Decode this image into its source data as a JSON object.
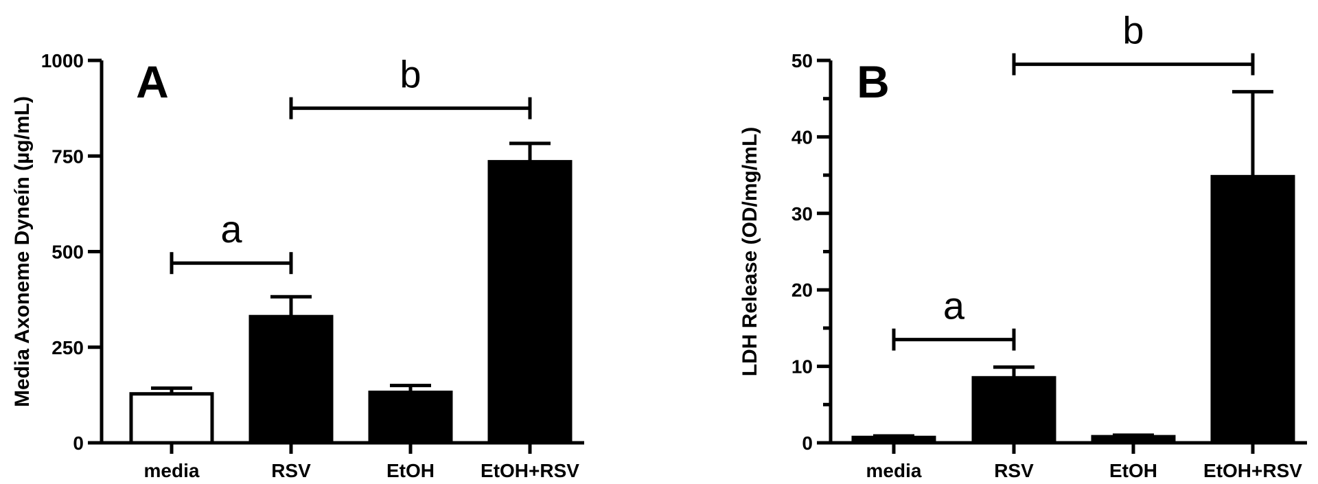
{
  "chart_data": [
    {
      "type": "bar",
      "panel": "A",
      "categories": [
        "media",
        "RSV",
        "EtOH",
        "EtOH+RSV"
      ],
      "values": [
        128,
        330,
        132,
        735
      ],
      "errors": [
        15,
        52,
        18,
        48
      ],
      "bar_fills": [
        "#ffffff",
        "#000000",
        "#000000",
        "#000000"
      ],
      "ylabel": "Media Axoneme Dyneín (µg/mL)",
      "ylim": [
        0,
        1000
      ],
      "yticks": [
        0,
        250,
        500,
        750,
        1000
      ],
      "grid": false,
      "significance": [
        {
          "label": "a",
          "from": 0,
          "to": 1,
          "y": 470
        },
        {
          "label": "b",
          "from": 1,
          "to": 3,
          "y": 875
        }
      ]
    },
    {
      "type": "bar",
      "panel": "B",
      "categories": [
        "media",
        "RSV",
        "EtOH",
        "EtOH+RSV"
      ],
      "values": [
        0.7,
        8.5,
        0.8,
        34.8
      ],
      "errors": [
        0.2,
        1.4,
        0.2,
        11.1
      ],
      "bar_fills": [
        "#000000",
        "#000000",
        "#000000",
        "#000000"
      ],
      "ylabel": "LDH Release (OD/mg/mL)",
      "ylim": [
        0,
        50
      ],
      "yticks": [
        0,
        10,
        20,
        30,
        40,
        50
      ],
      "grid": false,
      "significance": [
        {
          "label": "a",
          "from": 0,
          "to": 1,
          "y": 13.5
        },
        {
          "label": "b",
          "from": 1,
          "to": 3,
          "y": 49.5
        }
      ]
    }
  ]
}
